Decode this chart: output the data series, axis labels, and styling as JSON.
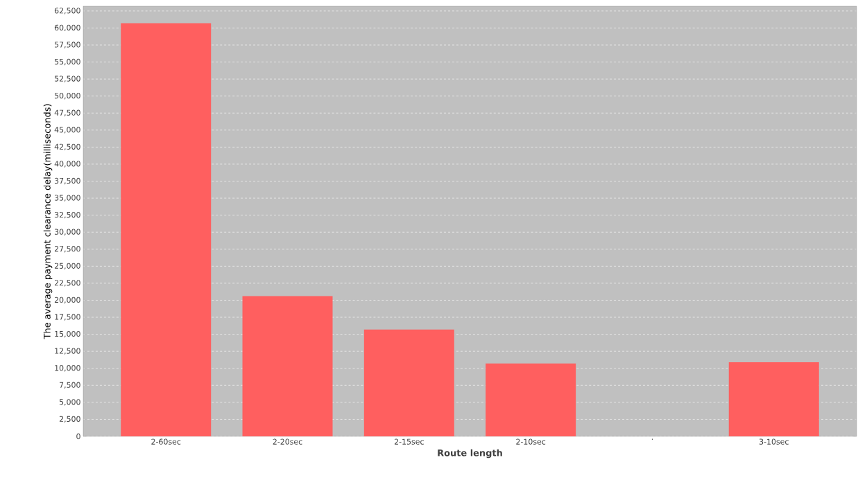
{
  "chart_data": {
    "type": "bar",
    "xlabel": "Route length",
    "ylabel": "The average payment clearance delay(milliseconds)",
    "categories": [
      "2-60sec",
      "2-20sec",
      "2-15sec",
      "2-10sec",
      ".",
      "3-10sec"
    ],
    "values": [
      60700,
      20600,
      15700,
      10700,
      null,
      10900
    ],
    "color": "#ff5f5f",
    "ylim": [
      0,
      63200
    ],
    "yticks": [
      {
        "value": 0,
        "label": "0"
      },
      {
        "value": 2500,
        "label": "2,500"
      },
      {
        "value": 5000,
        "label": "5,000"
      },
      {
        "value": 7500,
        "label": "7,500"
      },
      {
        "value": 10000,
        "label": "10,000"
      },
      {
        "value": 12500,
        "label": "12,500"
      },
      {
        "value": 15000,
        "label": "15,000"
      },
      {
        "value": 17500,
        "label": "17,500"
      },
      {
        "value": 20000,
        "label": "20,000"
      },
      {
        "value": 22500,
        "label": "22,500"
      },
      {
        "value": 25000,
        "label": "25,000"
      },
      {
        "value": 27500,
        "label": "27,500"
      },
      {
        "value": 30000,
        "label": "30,000"
      },
      {
        "value": 32500,
        "label": "32,500"
      },
      {
        "value": 35000,
        "label": "35,000"
      },
      {
        "value": 37500,
        "label": "37,500"
      },
      {
        "value": 40000,
        "label": "40,000"
      },
      {
        "value": 42500,
        "label": "42,500"
      },
      {
        "value": 45000,
        "label": "45,000"
      },
      {
        "value": 47500,
        "label": "47,500"
      },
      {
        "value": 50000,
        "label": "50,000"
      },
      {
        "value": 52500,
        "label": "52,500"
      },
      {
        "value": 55000,
        "label": "55,000"
      },
      {
        "value": 57500,
        "label": "57,500"
      },
      {
        "value": 60000,
        "label": "60,000"
      },
      {
        "value": 62500,
        "label": "62,500"
      }
    ],
    "grid": "y"
  }
}
